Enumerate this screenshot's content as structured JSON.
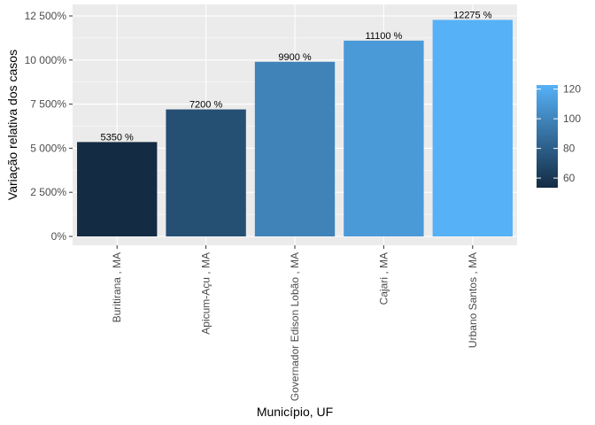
{
  "chart_data": {
    "type": "bar",
    "categories": [
      "Buritirana , MA",
      "Apicum-Açu , MA",
      "Governador Edison Lobão , MA",
      "Cajari , MA",
      "Urbano Santos , MA"
    ],
    "values": [
      5350,
      7200,
      9900,
      11100,
      12275
    ],
    "data_labels": [
      "5350 %",
      "7200 %",
      "9900 %",
      "11100 %",
      "12275 %"
    ],
    "xlabel": "Município, UF",
    "ylabel": "Variação relativa dos casos",
    "ylim": [
      0,
      12500
    ],
    "yticks": [
      0,
      2500,
      5000,
      7500,
      10000,
      12500
    ],
    "ytick_labels": [
      "0%",
      "2 500%",
      "5 000%",
      "7 500%",
      "10 000%",
      "12 500%"
    ],
    "legend": {
      "position": "right",
      "range": [
        53.5,
        122.75
      ],
      "ticks": [
        60,
        80,
        100,
        120
      ],
      "tick_labels": [
        "60",
        "80",
        "100",
        "120"
      ],
      "low_color": "#132b43",
      "high_color": "#56b1f7"
    },
    "fill_values": [
      53.5,
      72,
      99,
      111,
      122.75
    ],
    "grid": true,
    "panel_background": "#ebebeb"
  }
}
